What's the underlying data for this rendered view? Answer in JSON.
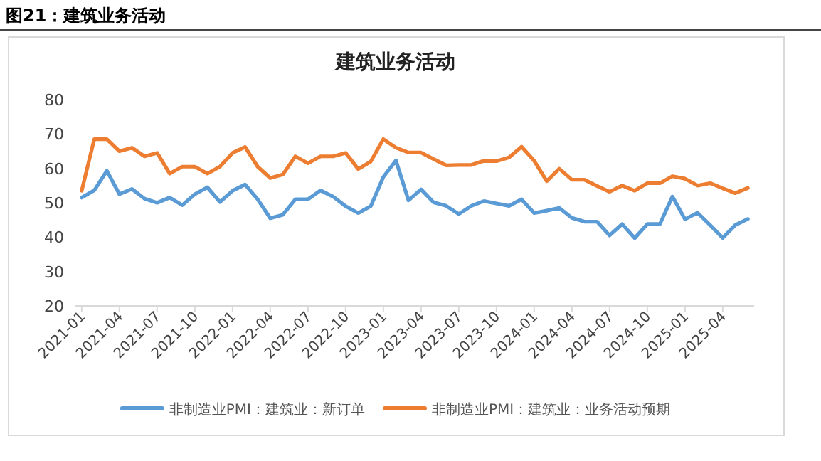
{
  "chart_data": {
    "type": "line",
    "title": "建筑业务活动",
    "annotations": [
      "图21：建筑业务活动"
    ],
    "categories": [
      "2021-01",
      null,
      null,
      "2021-04",
      null,
      null,
      "2021-07",
      null,
      null,
      "2021-10",
      null,
      null,
      "2022-01",
      null,
      null,
      "2022-04",
      null,
      null,
      "2022-07",
      null,
      null,
      "2022-10",
      null,
      null,
      "2023-01",
      null,
      null,
      "2023-04",
      null,
      null,
      "2023-07",
      null,
      null,
      "2023-10",
      null,
      null,
      "2024-01",
      null,
      null,
      "2024-04",
      null,
      null,
      "2024-07",
      null,
      null,
      "2024-10",
      null,
      null,
      "2025-01",
      null,
      null,
      "2025-04",
      null,
      null
    ],
    "series": [
      {
        "name": "非制造业PMI：建筑业：新订单",
        "color": "#5b9bd5",
        "values": [
          51.5,
          53.6,
          59.3,
          52.5,
          54,
          51.2,
          50,
          51.5,
          49.3,
          52.5,
          54.5,
          50.2,
          53.5,
          55.3,
          51,
          45.5,
          46.5,
          51,
          51,
          53.6,
          51.8,
          49,
          47,
          49,
          57.5,
          62.3,
          50.7,
          53.9,
          50.1,
          49.1,
          46.7,
          49.1,
          50.5,
          49.8,
          49.1,
          51,
          47,
          47.7,
          48.5,
          45.6,
          44.5,
          44.5,
          40.5,
          43.8,
          39.7,
          43.8,
          43.8,
          51.8,
          45.2,
          47.1,
          43.5,
          39.8,
          43.5,
          45.3
        ]
      },
      {
        "name": "非制造业PMI：建筑业：业务活动预期",
        "color": "#ed7d31",
        "values": [
          53.5,
          68.5,
          68.5,
          65,
          66,
          63.5,
          64.5,
          58.5,
          60.5,
          60.5,
          58.5,
          60.5,
          64.5,
          66.2,
          60.5,
          57.2,
          58.2,
          63.5,
          61.5,
          63.5,
          63.5,
          64.5,
          59.8,
          62,
          68.5,
          66,
          64.6,
          64.6,
          62.7,
          60.9,
          61,
          61,
          62.2,
          62.1,
          63.2,
          66.3,
          62.2,
          56.3,
          59.9,
          56.7,
          56.7,
          54.9,
          53.2,
          55,
          53.5,
          55.7,
          55.7,
          57.7,
          57,
          55,
          55.7,
          54.2,
          52.8,
          54.3
        ]
      }
    ],
    "ylim": [
      20,
      80
    ],
    "yticks": [
      20,
      30,
      40,
      50,
      60,
      70,
      80
    ],
    "legend": "bottom"
  }
}
